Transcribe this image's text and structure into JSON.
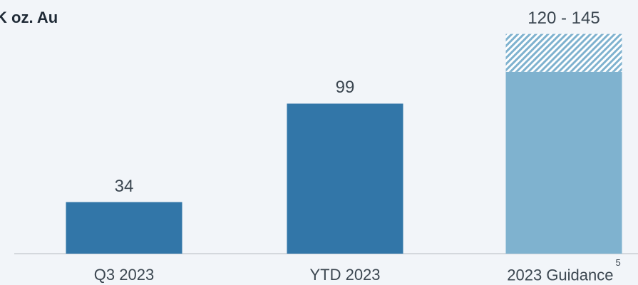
{
  "chart_data": {
    "type": "bar",
    "unit_label": "K oz. Au",
    "ylim": [
      0,
      160
    ],
    "categories": [
      "Q3 2023",
      "YTD 2023",
      "2023 Guidance"
    ],
    "values": [
      34,
      99,
      120
    ],
    "value_labels": [
      "34",
      "99",
      "120 - 145"
    ],
    "guidance_range": [
      120,
      145
    ],
    "footnote": "5",
    "colors": {
      "actual": "#3276a8",
      "guidance": "#7fb2cf",
      "guidance_hatch": "#7fb2cf",
      "axis": "#c9ced4"
    }
  }
}
